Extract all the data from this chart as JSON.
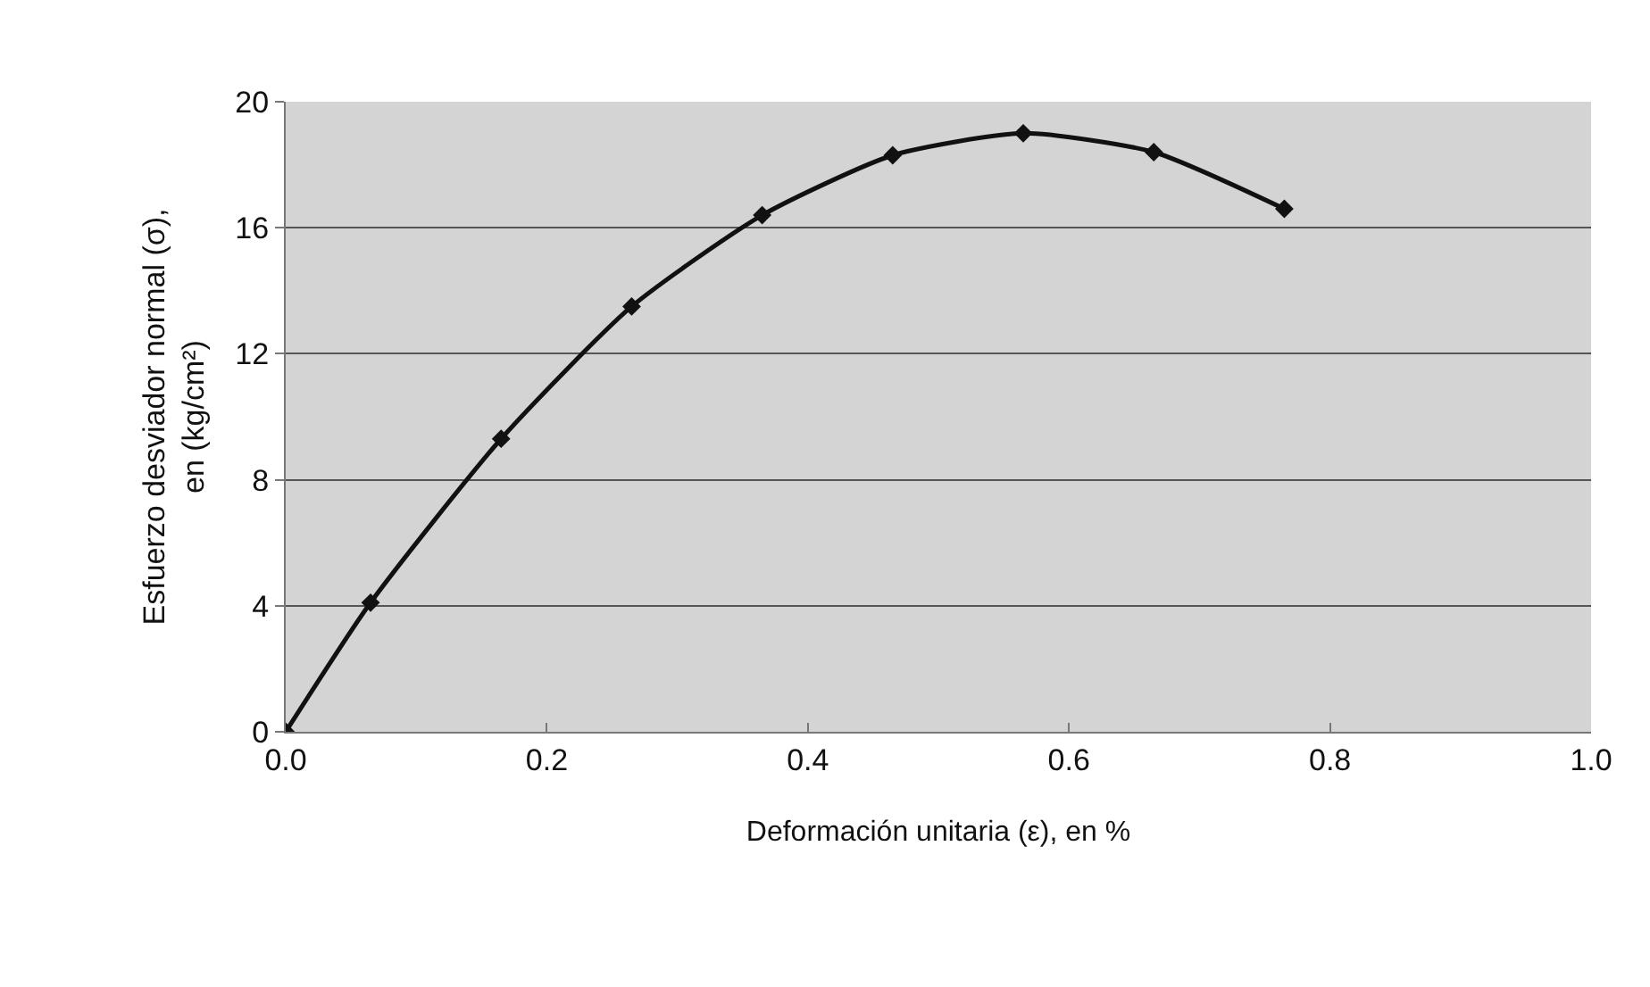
{
  "chart_data": {
    "type": "line",
    "xlabel": "Deformación unitaria (ε), en %",
    "ylabel": "Esfuerzo desviador normal (σ),\nen (kg/cm²)",
    "x": [
      0,
      0.065,
      0.165,
      0.265,
      0.365,
      0.465,
      0.565,
      0.665,
      0.765
    ],
    "series": [
      {
        "color": "#111111",
        "values": [
          0,
          4.1,
          9.3,
          13.5,
          16.4,
          18.3,
          19.0,
          18.4,
          16.6
        ]
      }
    ],
    "xlim": [
      0,
      1
    ],
    "xticks": [
      {
        "value": 0,
        "label": "0.0"
      },
      {
        "value": 0.2,
        "label": "0.2"
      },
      {
        "value": 0.4,
        "label": "0.4"
      },
      {
        "value": 0.6,
        "label": "0.6"
      },
      {
        "value": 0.8,
        "label": "0.8"
      },
      {
        "value": 1,
        "label": "1.0"
      }
    ],
    "ylim": [
      0,
      20
    ],
    "yticks": [
      0,
      4,
      8,
      12,
      16,
      20
    ],
    "grid": "y",
    "marker": "diamond",
    "line_style": "solid"
  }
}
